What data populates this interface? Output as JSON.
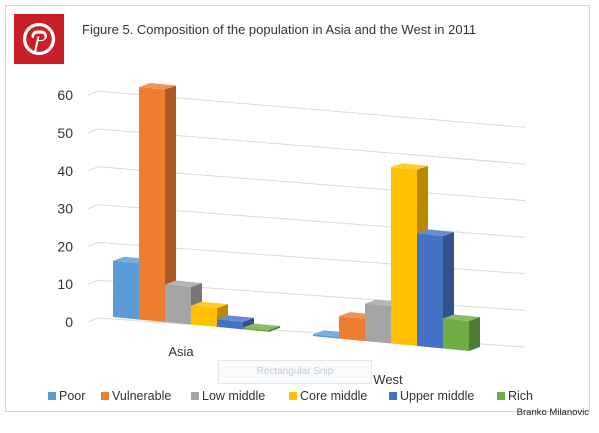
{
  "brand": {
    "logo_icon": "pinterest-logo-icon",
    "color": "#cb1f27"
  },
  "snip_label": "Rectangular Snip",
  "credit": "Branko Milanovic",
  "chart_data": {
    "type": "bar",
    "title": "Figure 5. Composition of the population in Asia and the West in 2011",
    "categories": [
      "Asia",
      "West"
    ],
    "series": [
      {
        "name": "Poor",
        "color": "#5b9bd5",
        "values": [
          15,
          0.5
        ]
      },
      {
        "name": "Vulnerable",
        "color": "#ed7d31",
        "values": [
          62,
          6
        ]
      },
      {
        "name": "Low middle",
        "color": "#a5a5a5",
        "values": [
          10,
          10
        ]
      },
      {
        "name": "Core middle",
        "color": "#ffc000",
        "values": [
          5,
          47
        ]
      },
      {
        "name": "Upper middle",
        "color": "#4472c4",
        "values": [
          2,
          30
        ]
      },
      {
        "name": "Rich",
        "color": "#70ad47",
        "values": [
          0.5,
          8
        ]
      }
    ],
    "yticks": [
      0,
      10,
      20,
      30,
      40,
      50,
      60
    ],
    "ylim": [
      0,
      60
    ],
    "grid": true,
    "legend": "bottom"
  }
}
